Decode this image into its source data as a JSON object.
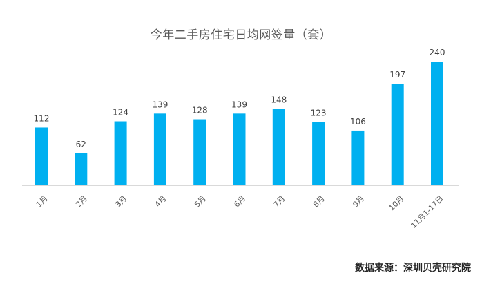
{
  "chart_data": {
    "type": "bar",
    "title": "今年二手房住宅日均网签量（套）",
    "categories": [
      "1月",
      "2月",
      "3月",
      "4月",
      "5月",
      "6月",
      "7月",
      "8月",
      "9月",
      "10月",
      "11月1-17日"
    ],
    "values": [
      112,
      62,
      124,
      139,
      128,
      139,
      148,
      123,
      106,
      197,
      240
    ],
    "data_labels": [
      "112",
      "62",
      "124",
      "139",
      "128",
      "139",
      "148",
      "123",
      "106",
      "197",
      "240"
    ],
    "xlabel": "",
    "ylabel": "",
    "ylim": [
      0,
      240
    ],
    "grid": false,
    "legend": "none",
    "bar_color": "#00b0f0"
  },
  "source": "数据来源：深圳贝壳研究院"
}
